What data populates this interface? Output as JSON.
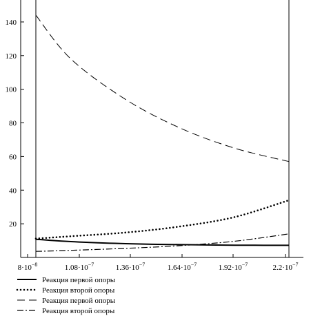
{
  "chart_data": {
    "type": "line",
    "title": "",
    "xlabel": "",
    "ylabel": "",
    "xlim": [
      8e-08,
      2.2e-07
    ],
    "ylim": [
      0,
      150
    ],
    "x_ticks": [
      {
        "value": 8e-08,
        "mantissa": "8",
        "exponent": "−8"
      },
      {
        "value": 1.08e-07,
        "mantissa": "1.08",
        "exponent": "−7"
      },
      {
        "value": 1.36e-07,
        "mantissa": "1.36",
        "exponent": "−7"
      },
      {
        "value": 1.64e-07,
        "mantissa": "1.64",
        "exponent": "−7"
      },
      {
        "value": 1.92e-07,
        "mantissa": "1.92",
        "exponent": "−7"
      },
      {
        "value": 2.2e-07,
        "mantissa": "2.2",
        "exponent": "−7"
      }
    ],
    "x_tick_separator": "·10",
    "y_ticks": [
      20,
      40,
      60,
      80,
      100,
      120,
      140
    ],
    "grid": false,
    "legend_position": "bottom-left",
    "series": [
      {
        "name": "Реакция первой опоры",
        "style": "solid",
        "x": [
          9e-08,
          1.08e-07,
          1.36e-07,
          1.64e-07,
          1.92e-07,
          2.2e-07
        ],
        "values": [
          10.8,
          9.4,
          8.2,
          7.6,
          7.3,
          7.2
        ]
      },
      {
        "name": "Реакция второй опоры",
        "style": "dotted",
        "x": [
          9e-08,
          1.08e-07,
          1.36e-07,
          1.64e-07,
          1.92e-07,
          2.2e-07
        ],
        "values": [
          11.2,
          12.6,
          14.8,
          18.4,
          24.0,
          34.0
        ]
      },
      {
        "name": "Реакция первой опоры",
        "style": "dashed",
        "x": [
          9e-08,
          1.08e-07,
          1.36e-07,
          1.64e-07,
          1.92e-07,
          2.2e-07
        ],
        "values": [
          144,
          118,
          94,
          77,
          65,
          57
        ]
      },
      {
        "name": "Реакция второй опоры",
        "style": "dashdot",
        "x": [
          9e-08,
          1.08e-07,
          1.36e-07,
          1.64e-07,
          1.92e-07,
          2.2e-07
        ],
        "values": [
          3.6,
          4.2,
          5.4,
          7.0,
          9.6,
          14.0
        ]
      }
    ]
  }
}
